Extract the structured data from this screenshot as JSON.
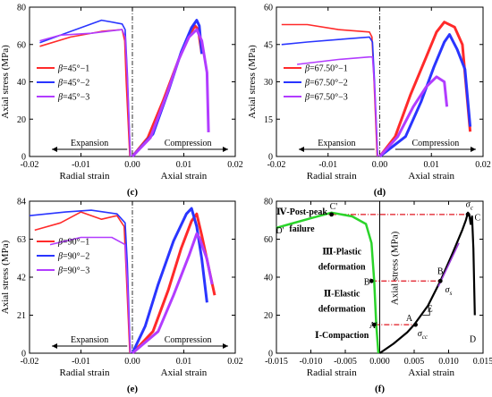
{
  "figure": {
    "panels": [
      {
        "tag": "(c)",
        "xlabel_left": "Radial strain",
        "xlabel_right": "Axial strain",
        "ylabel": "Axial stress (MPa)",
        "xlim": [
          -0.02,
          0.02
        ],
        "ylim": [
          0,
          80
        ],
        "yticks": [
          "0",
          "20",
          "40",
          "60",
          "80"
        ],
        "yticks_val": [
          0,
          20,
          40,
          60,
          80
        ],
        "xticks": [
          "-0.02",
          "-0.01",
          "0.00",
          "0.01",
          "0.02"
        ],
        "xticks_val": [
          -0.02,
          -0.01,
          0.0,
          0.01,
          0.02
        ],
        "arrow_left": "Expansion",
        "arrow_right": "Compression",
        "legend_prefix": "β",
        "legend": [
          "=45°−1",
          "=45°−2",
          "=45°−3"
        ],
        "series": [
          {
            "color": "#ff2a2a",
            "radial": [
              [
                -0.0005,
                0
              ],
              [
                -0.0012,
                40
              ],
              [
                -0.0015,
                62
              ],
              [
                -0.002,
                68
              ],
              [
                -0.006,
                67
              ],
              [
                -0.012,
                64
              ],
              [
                -0.018,
                59
              ]
            ],
            "axial": [
              [
                0,
                0
              ],
              [
                0.003,
                10
              ],
              [
                0.006,
                30
              ],
              [
                0.009,
                52
              ],
              [
                0.011,
                65
              ],
              [
                0.0122,
                70
              ],
              [
                0.0128,
                68
              ],
              [
                0.0135,
                55
              ]
            ]
          },
          {
            "color": "#2a35ff",
            "radial": [
              [
                -0.0004,
                0
              ],
              [
                -0.001,
                45
              ],
              [
                -0.0014,
                68
              ],
              [
                -0.002,
                71
              ],
              [
                -0.006,
                73
              ],
              [
                -0.012,
                67
              ],
              [
                -0.018,
                61
              ]
            ],
            "axial": [
              [
                0,
                0
              ],
              [
                0.004,
                12
              ],
              [
                0.007,
                35
              ],
              [
                0.0095,
                56
              ],
              [
                0.0115,
                69
              ],
              [
                0.0125,
                73
              ],
              [
                0.013,
                70
              ],
              [
                0.0135,
                55
              ]
            ]
          },
          {
            "color": "#b23cff",
            "radial": [
              [
                -0.0004,
                0
              ],
              [
                -0.001,
                42
              ],
              [
                -0.0014,
                64
              ],
              [
                -0.002,
                68
              ],
              [
                -0.008,
                66
              ],
              [
                -0.014,
                65
              ],
              [
                -0.018,
                62
              ]
            ],
            "axial": [
              [
                0,
                0
              ],
              [
                0.0035,
                10
              ],
              [
                0.0065,
                32
              ],
              [
                0.009,
                52
              ],
              [
                0.011,
                64
              ],
              [
                0.0125,
                68
              ],
              [
                0.0135,
                62
              ],
              [
                0.0145,
                45
              ],
              [
                0.0148,
                13
              ]
            ]
          }
        ]
      },
      {
        "tag": "(d)",
        "xlabel_left": "Radial strain",
        "xlabel_right": "Axial strain",
        "ylabel": "Axial stress (MPa)",
        "xlim": [
          -0.02,
          0.02
        ],
        "ylim": [
          0,
          60
        ],
        "yticks": [
          "0",
          "15",
          "30",
          "45",
          "60"
        ],
        "yticks_val": [
          0,
          15,
          30,
          45,
          60
        ],
        "xticks": [
          "-0.02",
          "-0.01",
          "0.00",
          "0.01",
          "0.02"
        ],
        "xticks_val": [
          -0.02,
          -0.01,
          0.0,
          0.01,
          0.02
        ],
        "arrow_left": "Expansion",
        "arrow_right": "Compression",
        "legend_prefix": "β",
        "legend": [
          "=67.50°−1",
          "=67.50°−2",
          "=67.50°−3"
        ],
        "series": [
          {
            "color": "#ff2a2a",
            "radial": [
              [
                -0.0005,
                0
              ],
              [
                -0.0012,
                35
              ],
              [
                -0.0015,
                48
              ],
              [
                -0.002,
                50
              ],
              [
                -0.008,
                51
              ],
              [
                -0.014,
                53
              ],
              [
                -0.019,
                53
              ]
            ],
            "axial": [
              [
                0,
                0
              ],
              [
                0.003,
                8
              ],
              [
                0.006,
                25
              ],
              [
                0.009,
                40
              ],
              [
                0.011,
                50
              ],
              [
                0.0125,
                54
              ],
              [
                0.0145,
                52
              ],
              [
                0.016,
                45
              ],
              [
                0.0175,
                10
              ]
            ]
          },
          {
            "color": "#2a35ff",
            "radial": [
              [
                -0.0004,
                0
              ],
              [
                -0.001,
                30
              ],
              [
                -0.0014,
                46
              ],
              [
                -0.002,
                48
              ],
              [
                -0.008,
                47
              ],
              [
                -0.014,
                46
              ],
              [
                -0.019,
                45
              ]
            ],
            "axial": [
              [
                0,
                0
              ],
              [
                0.005,
                8
              ],
              [
                0.008,
                22
              ],
              [
                0.0105,
                36
              ],
              [
                0.0125,
                46
              ],
              [
                0.0135,
                49
              ],
              [
                0.015,
                43
              ],
              [
                0.0165,
                35
              ],
              [
                0.0175,
                12
              ]
            ]
          },
          {
            "color": "#b23cff",
            "radial": [
              [
                -0.0004,
                0
              ],
              [
                -0.001,
                28
              ],
              [
                -0.0014,
                40
              ],
              [
                -0.002,
                40
              ],
              [
                -0.008,
                39
              ],
              [
                -0.016,
                37
              ]
            ],
            "axial": [
              [
                0,
                0
              ],
              [
                0.0035,
                8
              ],
              [
                0.0065,
                20
              ],
              [
                0.009,
                28
              ],
              [
                0.011,
                32
              ],
              [
                0.0125,
                30
              ],
              [
                0.013,
                20
              ]
            ]
          }
        ]
      },
      {
        "tag": "(e)",
        "xlabel_left": "Radial strain",
        "xlabel_right": "Axial strain",
        "ylabel": "Axial stress (MPa)",
        "xlim": [
          -0.02,
          0.02
        ],
        "ylim": [
          0,
          84
        ],
        "yticks": [
          "0",
          "21",
          "42",
          "63",
          "84"
        ],
        "yticks_val": [
          0,
          21,
          42,
          63,
          84
        ],
        "xticks": [
          "-0.02",
          "-0.01",
          "0.00",
          "0.01",
          "0.02"
        ],
        "xticks_val": [
          -0.02,
          -0.01,
          0.0,
          0.01,
          0.02
        ],
        "arrow_left": "Expansion",
        "arrow_right": "Compression",
        "legend_prefix": "β",
        "legend": [
          "=90°−1",
          "=90°−2",
          "=90°−3"
        ],
        "series": [
          {
            "color": "#ff2a2a",
            "radial": [
              [
                -0.0005,
                0
              ],
              [
                -0.0012,
                45
              ],
              [
                -0.0016,
                70
              ],
              [
                -0.003,
                76
              ],
              [
                -0.006,
                74
              ],
              [
                -0.01,
                78
              ],
              [
                -0.014,
                72
              ],
              [
                -0.019,
                68
              ]
            ],
            "axial": [
              [
                0,
                0
              ],
              [
                0.004,
                12
              ],
              [
                0.007,
                35
              ],
              [
                0.0095,
                58
              ],
              [
                0.0115,
                73
              ],
              [
                0.0125,
                77
              ],
              [
                0.0135,
                65
              ],
              [
                0.015,
                45
              ],
              [
                0.016,
                32
              ]
            ]
          },
          {
            "color": "#2a35ff",
            "radial": [
              [
                -0.0004,
                0
              ],
              [
                -0.001,
                50
              ],
              [
                -0.0014,
                72
              ],
              [
                -0.003,
                77
              ],
              [
                -0.008,
                79
              ],
              [
                -0.013,
                78
              ],
              [
                -0.02,
                76
              ]
            ],
            "axial": [
              [
                0,
                0
              ],
              [
                0.0025,
                15
              ],
              [
                0.005,
                38
              ],
              [
                0.008,
                62
              ],
              [
                0.0105,
                77
              ],
              [
                0.0115,
                80
              ],
              [
                0.0125,
                70
              ],
              [
                0.0135,
                52
              ],
              [
                0.0145,
                28
              ]
            ]
          },
          {
            "color": "#b23cff",
            "radial": [
              [
                -0.0004,
                0
              ],
              [
                -0.001,
                40
              ],
              [
                -0.0014,
                60
              ],
              [
                -0.004,
                64
              ],
              [
                -0.01,
                64
              ],
              [
                -0.016,
                60
              ]
            ],
            "axial": [
              [
                0,
                0
              ],
              [
                0.005,
                12
              ],
              [
                0.008,
                32
              ],
              [
                0.011,
                54
              ],
              [
                0.0125,
                66
              ],
              [
                0.013,
                64
              ],
              [
                0.0145,
                52
              ],
              [
                0.0155,
                38
              ]
            ]
          }
        ]
      },
      {
        "tag": "(f)",
        "xlabel_left": "Radial strain",
        "xlabel_right": "Axial strain",
        "ylabel": "Axial stress (MPa)",
        "xlim": [
          -0.015,
          0.015
        ],
        "ylim": [
          0,
          80
        ],
        "yticks": [
          "0",
          "20",
          "40",
          "60",
          "80"
        ],
        "yticks_val": [
          0,
          20,
          40,
          60,
          80
        ],
        "xticks": [
          "-0.015",
          "-0.010",
          "-0.005",
          "0.000",
          "0.005",
          "0.010",
          "0.015"
        ],
        "xticks_val": [
          -0.015,
          -0.01,
          -0.005,
          0.0,
          0.005,
          0.01,
          0.015
        ],
        "stages": [
          "Ⅳ-Post-peak",
          "failure",
          "Ⅲ-Plastic",
          "deformation",
          "Ⅱ-Elastic",
          "deformation",
          "Ⅰ-Compaction"
        ],
        "points": [
          "A",
          "A'",
          "B",
          "B'",
          "C",
          "C'",
          "D",
          "D'",
          "E"
        ],
        "sigma_labels": {
          "sigma": "σ",
          "cc": "cc",
          "s": "s",
          "c": "c"
        },
        "levels": {
          "A": 15,
          "B": 38,
          "C": 73
        },
        "axial_curve": [
          [
            0,
            0
          ],
          [
            0.002,
            5
          ],
          [
            0.004,
            11
          ],
          [
            0.005,
            15
          ],
          [
            0.007,
            25
          ],
          [
            0.0088,
            38
          ],
          [
            0.0105,
            52
          ],
          [
            0.012,
            65
          ],
          [
            0.0125,
            70
          ],
          [
            0.0128,
            74
          ],
          [
            0.013,
            73
          ],
          [
            0.0132,
            68
          ],
          [
            0.0134,
            72
          ],
          [
            0.0136,
            55
          ],
          [
            0.0138,
            20
          ]
        ],
        "radial_curve": [
          [
            -0.0002,
            0
          ],
          [
            -0.0005,
            15
          ],
          [
            -0.0008,
            38
          ],
          [
            -0.0012,
            58
          ],
          [
            -0.002,
            68
          ],
          [
            -0.004,
            72
          ],
          [
            -0.007,
            74
          ],
          [
            -0.01,
            71
          ],
          [
            -0.013,
            68
          ],
          [
            -0.015,
            66
          ]
        ],
        "axial_color": "#000000",
        "radial_color": "#2bd42b",
        "guide_color": "#e0141e",
        "helper_color": "#9a3bd6"
      }
    ]
  }
}
